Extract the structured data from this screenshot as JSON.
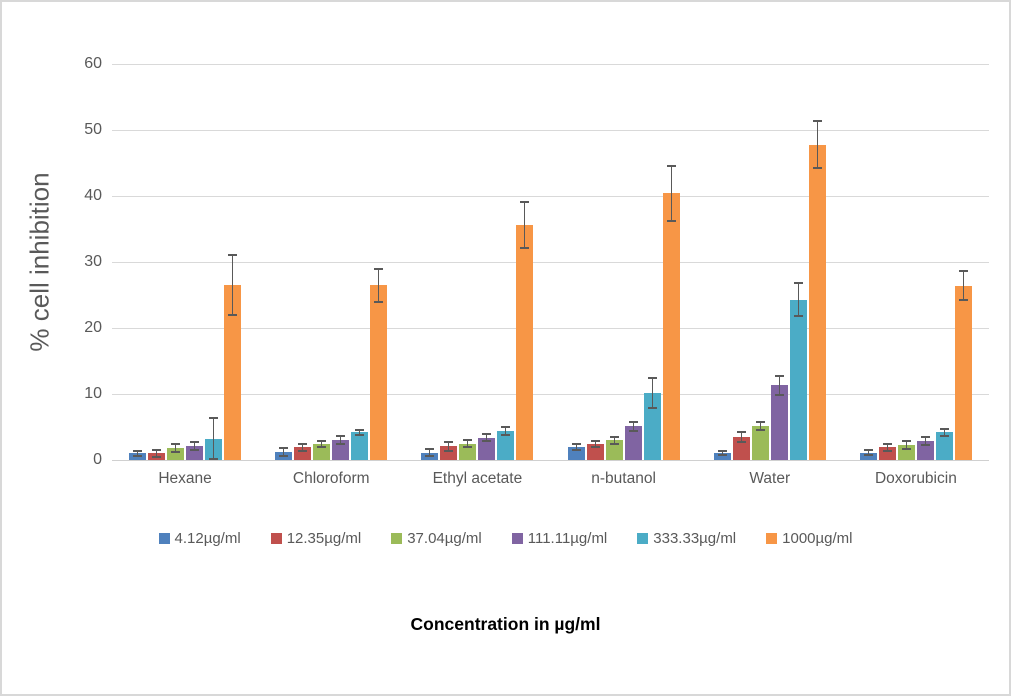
{
  "chart_data": {
    "type": "bar",
    "title": "",
    "ylabel": "% cell inhibition",
    "xlabel": "Concentration in µg/ml",
    "ylim": [
      0,
      60
    ],
    "yticks": [
      0,
      10,
      20,
      30,
      40,
      50,
      60
    ],
    "grid": true,
    "legend_position": "bottom",
    "gridline_color": "#d9d9d9",
    "error_bar_color": "#595959",
    "categories": [
      "Hexane",
      "Chloroform",
      "Ethyl acetate",
      "n-butanol",
      "Water",
      "Doxorubicin"
    ],
    "series": [
      {
        "name": "4.12µg/ml",
        "color": "#4F81BD",
        "values": [
          1.0,
          1.2,
          1.1,
          2.0,
          1.0,
          1.1
        ],
        "errors": [
          0.4,
          0.6,
          0.5,
          0.5,
          0.3,
          0.4
        ]
      },
      {
        "name": "12.35µg/ml",
        "color": "#C0504D",
        "values": [
          1.0,
          1.9,
          2.1,
          2.4,
          3.5,
          1.9
        ],
        "errors": [
          0.5,
          0.5,
          0.7,
          0.5,
          0.8,
          0.5
        ]
      },
      {
        "name": "37.04µg/ml",
        "color": "#9BBB59",
        "values": [
          1.8,
          2.4,
          2.5,
          3.0,
          5.2,
          2.3
        ],
        "errors": [
          0.6,
          0.5,
          0.5,
          0.5,
          0.6,
          0.6
        ]
      },
      {
        "name": "111.11µg/ml",
        "color": "#8064A2",
        "values": [
          2.1,
          3.0,
          3.4,
          5.1,
          11.3,
          2.9
        ],
        "errors": [
          0.6,
          0.6,
          0.5,
          0.7,
          1.5,
          0.6
        ]
      },
      {
        "name": "333.33µg/ml",
        "color": "#4BACC6",
        "values": [
          3.2,
          4.2,
          4.4,
          10.2,
          24.3,
          4.2
        ],
        "errors": [
          3.1,
          0.4,
          0.6,
          2.3,
          2.5,
          0.5
        ]
      },
      {
        "name": "1000µg/ml",
        "color": "#F79646",
        "values": [
          26.5,
          26.5,
          35.6,
          40.4,
          47.8,
          26.4
        ],
        "errors": [
          4.5,
          2.5,
          3.5,
          4.2,
          3.5,
          2.2
        ]
      }
    ]
  }
}
